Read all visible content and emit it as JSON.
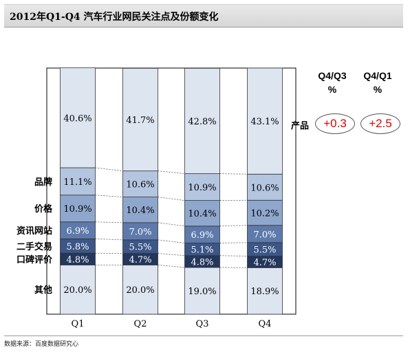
{
  "title": "2012年Q1-Q4  汽车行业网民关注点及份额变化",
  "source": "数据来源：百度数据研究心",
  "header": {
    "col1_label": "Q4/Q3",
    "col2_label": "Q4/Q1",
    "unit": "%"
  },
  "product_row": {
    "label": "产品",
    "q4_vs_q3": "+0.3",
    "q4_vs_q1": "+2.5"
  },
  "colors": {
    "top_light": "#dde5f1",
    "mid_light": "#b4c5e0",
    "mid": "#8fa7cc",
    "dark": "#5e7aab",
    "darker": "#3c5687",
    "darkest": "#23375d",
    "oval_text": "#e00000"
  },
  "chart_data": {
    "type": "stacked bar",
    "categories": [
      "Q1",
      "Q2",
      "Q3",
      "Q4"
    ],
    "series": [
      {
        "name": "其他",
        "values": [
          20.0,
          20.0,
          19.0,
          18.9
        ],
        "labels": [
          "20.0%",
          "20.0%",
          "19.0%",
          "18.9%"
        ]
      },
      {
        "name": "口碑评价",
        "values": [
          4.8,
          4.7,
          4.8,
          4.7
        ],
        "labels": [
          "4.8%",
          "4.7%",
          "4.8%",
          "4.7%"
        ]
      },
      {
        "name": "二手交易",
        "values": [
          5.8,
          5.5,
          5.1,
          5.5
        ],
        "labels": [
          "5.8%",
          "5.5%",
          "5.1%",
          "5.5%"
        ]
      },
      {
        "name": "资讯网站",
        "values": [
          6.9,
          7.0,
          6.9,
          7.0
        ],
        "labels": [
          "6.9%",
          "7.0%",
          "6.9%",
          "7.0%"
        ]
      },
      {
        "name": "价格",
        "values": [
          10.9,
          10.4,
          10.4,
          10.2
        ],
        "labels": [
          "10.9%",
          "10.4%",
          "10.4%",
          "10.2%"
        ]
      },
      {
        "name": "品牌",
        "values": [
          11.1,
          10.6,
          10.9,
          10.6
        ],
        "labels": [
          "11.1%",
          "10.6%",
          "10.9%",
          "10.6%"
        ]
      },
      {
        "name": "",
        "values": [
          40.6,
          41.7,
          42.8,
          43.1
        ],
        "labels": [
          "40.6%",
          "41.7%",
          "42.8%",
          "43.1%"
        ]
      }
    ],
    "ylim": [
      0,
      100
    ],
    "grid": false,
    "legend": "left row labels"
  }
}
